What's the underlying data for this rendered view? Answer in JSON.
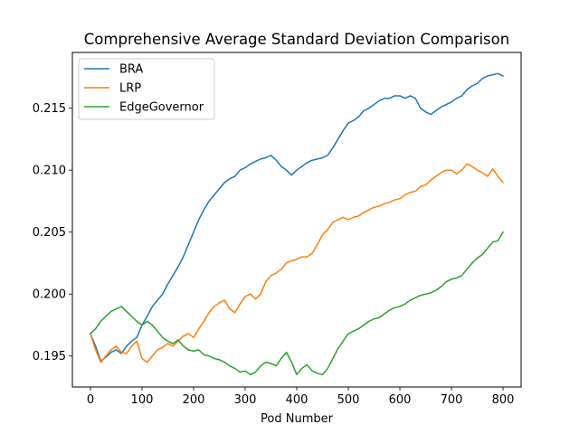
{
  "chart_data": {
    "type": "line",
    "title": "Comprehensive Average Standard Deviation Comparison",
    "xlabel": "Pod Number",
    "ylabel": "",
    "xlim": [
      -35,
      835
    ],
    "ylim": [
      0.1925,
      0.2195
    ],
    "xticks": [
      0,
      100,
      200,
      300,
      400,
      500,
      600,
      700,
      800
    ],
    "xtick_labels": [
      "0",
      "100",
      "200",
      "300",
      "400",
      "500",
      "600",
      "700",
      "800"
    ],
    "yticks": [
      0.195,
      0.2,
      0.205,
      0.21,
      0.215
    ],
    "ytick_labels": [
      "0.195",
      "0.200",
      "0.205",
      "0.210",
      "0.215"
    ],
    "grid": false,
    "legend_position": "upper-left",
    "series": [
      {
        "name": "BRA",
        "color": "#1f77b4",
        "x": [
          0,
          10,
          20,
          30,
          40,
          50,
          60,
          70,
          80,
          90,
          100,
          110,
          120,
          130,
          140,
          150,
          160,
          170,
          180,
          190,
          200,
          210,
          220,
          230,
          240,
          250,
          260,
          270,
          280,
          290,
          300,
          310,
          320,
          330,
          340,
          350,
          360,
          370,
          380,
          390,
          400,
          410,
          420,
          430,
          440,
          450,
          460,
          470,
          480,
          490,
          500,
          510,
          520,
          530,
          540,
          550,
          560,
          570,
          580,
          590,
          600,
          610,
          620,
          630,
          640,
          650,
          660,
          670,
          680,
          690,
          700,
          710,
          720,
          730,
          740,
          750,
          760,
          770,
          780,
          790,
          800
        ],
        "values": [
          0.1968,
          0.1958,
          0.1946,
          0.1949,
          0.1953,
          0.1955,
          0.1952,
          0.1958,
          0.1962,
          0.1965,
          0.1975,
          0.1982,
          0.199,
          0.1995,
          0.2,
          0.2008,
          0.2015,
          0.2022,
          0.203,
          0.204,
          0.205,
          0.206,
          0.2068,
          0.2075,
          0.208,
          0.2085,
          0.209,
          0.2093,
          0.2095,
          0.21,
          0.2102,
          0.2105,
          0.2107,
          0.2109,
          0.211,
          0.2112,
          0.2108,
          0.2103,
          0.21,
          0.2096,
          0.21,
          0.2103,
          0.2106,
          0.2108,
          0.2109,
          0.211,
          0.2112,
          0.2118,
          0.2125,
          0.2132,
          0.2138,
          0.214,
          0.2143,
          0.2148,
          0.215,
          0.2153,
          0.2156,
          0.2158,
          0.2158,
          0.216,
          0.216,
          0.2158,
          0.216,
          0.2158,
          0.215,
          0.2147,
          0.2145,
          0.2148,
          0.2151,
          0.2153,
          0.2155,
          0.2158,
          0.216,
          0.2165,
          0.2168,
          0.217,
          0.2174,
          0.2176,
          0.2177,
          0.2178,
          0.2176
        ]
      },
      {
        "name": "LRP",
        "color": "#ff7f0e",
        "x": [
          0,
          10,
          20,
          30,
          40,
          50,
          60,
          70,
          80,
          90,
          100,
          110,
          120,
          130,
          140,
          150,
          160,
          170,
          180,
          190,
          200,
          210,
          220,
          230,
          240,
          250,
          260,
          270,
          280,
          290,
          300,
          310,
          320,
          330,
          340,
          350,
          360,
          370,
          380,
          390,
          400,
          410,
          420,
          430,
          440,
          450,
          460,
          470,
          480,
          490,
          500,
          510,
          520,
          530,
          540,
          550,
          560,
          570,
          580,
          590,
          600,
          610,
          620,
          630,
          640,
          650,
          660,
          670,
          680,
          690,
          700,
          710,
          720,
          730,
          740,
          750,
          760,
          770,
          780,
          790,
          800
        ],
        "values": [
          0.1968,
          0.1955,
          0.1945,
          0.195,
          0.1955,
          0.1958,
          0.1953,
          0.1952,
          0.1958,
          0.1962,
          0.1948,
          0.1945,
          0.195,
          0.1955,
          0.1957,
          0.196,
          0.1958,
          0.1962,
          0.1966,
          0.1968,
          0.1965,
          0.1972,
          0.1978,
          0.1985,
          0.199,
          0.1993,
          0.1995,
          0.1988,
          0.1985,
          0.1992,
          0.1998,
          0.2,
          0.1996,
          0.2,
          0.201,
          0.2015,
          0.2017,
          0.202,
          0.2025,
          0.2027,
          0.2028,
          0.203,
          0.203,
          0.2033,
          0.204,
          0.2048,
          0.2052,
          0.2058,
          0.206,
          0.2062,
          0.206,
          0.2062,
          0.2063,
          0.2066,
          0.2068,
          0.207,
          0.2071,
          0.2073,
          0.2074,
          0.2076,
          0.2077,
          0.208,
          0.2082,
          0.2083,
          0.2087,
          0.2088,
          0.2092,
          0.2095,
          0.2098,
          0.21,
          0.21,
          0.2097,
          0.21,
          0.2105,
          0.2103,
          0.21,
          0.2098,
          0.2095,
          0.2101,
          0.2095,
          0.209
        ]
      },
      {
        "name": "EdgeGovernor",
        "color": "#2ca02c",
        "x": [
          0,
          10,
          20,
          30,
          40,
          50,
          60,
          70,
          80,
          90,
          100,
          110,
          120,
          130,
          140,
          150,
          160,
          170,
          180,
          190,
          200,
          210,
          220,
          230,
          240,
          250,
          260,
          270,
          280,
          290,
          300,
          310,
          320,
          330,
          340,
          350,
          360,
          370,
          380,
          390,
          400,
          410,
          420,
          430,
          440,
          450,
          460,
          470,
          480,
          490,
          500,
          510,
          520,
          530,
          540,
          550,
          560,
          570,
          580,
          590,
          600,
          610,
          620,
          630,
          640,
          650,
          660,
          670,
          680,
          690,
          700,
          710,
          720,
          730,
          740,
          750,
          760,
          770,
          780,
          790,
          800
        ],
        "values": [
          0.1968,
          0.1972,
          0.1978,
          0.1982,
          0.1986,
          0.1988,
          0.199,
          0.1986,
          0.1982,
          0.1978,
          0.1975,
          0.1978,
          0.1975,
          0.197,
          0.1965,
          0.1962,
          0.196,
          0.1963,
          0.1958,
          0.1955,
          0.1954,
          0.1955,
          0.1951,
          0.195,
          0.1948,
          0.1947,
          0.1945,
          0.1942,
          0.194,
          0.1937,
          0.1938,
          0.1935,
          0.1937,
          0.1942,
          0.1945,
          0.1944,
          0.1942,
          0.1948,
          0.1953,
          0.1945,
          0.1935,
          0.194,
          0.1943,
          0.1938,
          0.1936,
          0.1935,
          0.194,
          0.1948,
          0.1956,
          0.1962,
          0.1968,
          0.197,
          0.1972,
          0.1975,
          0.1978,
          0.198,
          0.1981,
          0.1984,
          0.1987,
          0.1989,
          0.199,
          0.1992,
          0.1995,
          0.1997,
          0.1999,
          0.2,
          0.2001,
          0.2003,
          0.2006,
          0.201,
          0.2012,
          0.2013,
          0.2015,
          0.202,
          0.2025,
          0.2029,
          0.2032,
          0.2037,
          0.2042,
          0.2043,
          0.205
        ]
      }
    ]
  }
}
